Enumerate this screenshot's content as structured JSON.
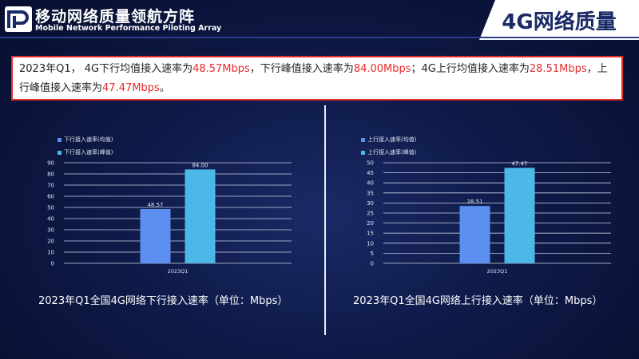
{
  "header": {
    "brand_cn": "移动网络质量领航方阵",
    "brand_en": "Mobile Network Performance Piloting Array",
    "title": "4G网络质量"
  },
  "summary": {
    "p1": "2023年Q1， 4G下行均值接入速率为",
    "v1": "48.57Mbps",
    "p2": "，下行峰值接入速率为",
    "v2": "84.00Mbps",
    "p3": "；4G上行均值接入速率为",
    "v3": "28.51Mbps",
    "p4": "，上行峰值接入速率为",
    "v4": "47.47Mbps",
    "p5": "。"
  },
  "colors": {
    "mean": "#5b8ff0",
    "peak": "#4cb8e8",
    "accent": "#e32b2b"
  },
  "chart_data": [
    {
      "type": "bar",
      "title": "2023年Q1全国4G网络下行接入速率（单位：Mbps）",
      "categories": [
        "2023Q1"
      ],
      "series": [
        {
          "name": "下行接入速率(均值)",
          "values": [
            48.57
          ]
        },
        {
          "name": "下行接入速率(峰值)",
          "values": [
            84.0
          ]
        }
      ],
      "ylim": [
        0,
        90
      ],
      "yticks": [
        0,
        10,
        20,
        30,
        40,
        50,
        60,
        70,
        80,
        90
      ],
      "data_labels": [
        "48.57",
        "84.00"
      ],
      "grid": true,
      "legend": "top-left"
    },
    {
      "type": "bar",
      "title": "2023年Q1全国4G网络上行接入速率（单位：Mbps）",
      "categories": [
        "2023Q1"
      ],
      "series": [
        {
          "name": "上行接入速率(均值)",
          "values": [
            28.51
          ]
        },
        {
          "name": "上行接入速率(峰值)",
          "values": [
            47.47
          ]
        }
      ],
      "ylim": [
        0,
        50
      ],
      "yticks": [
        0,
        5,
        10,
        15,
        20,
        25,
        30,
        35,
        40,
        45,
        50
      ],
      "data_labels": [
        "28.51",
        "47.47"
      ],
      "grid": true,
      "legend": "top-left"
    }
  ]
}
